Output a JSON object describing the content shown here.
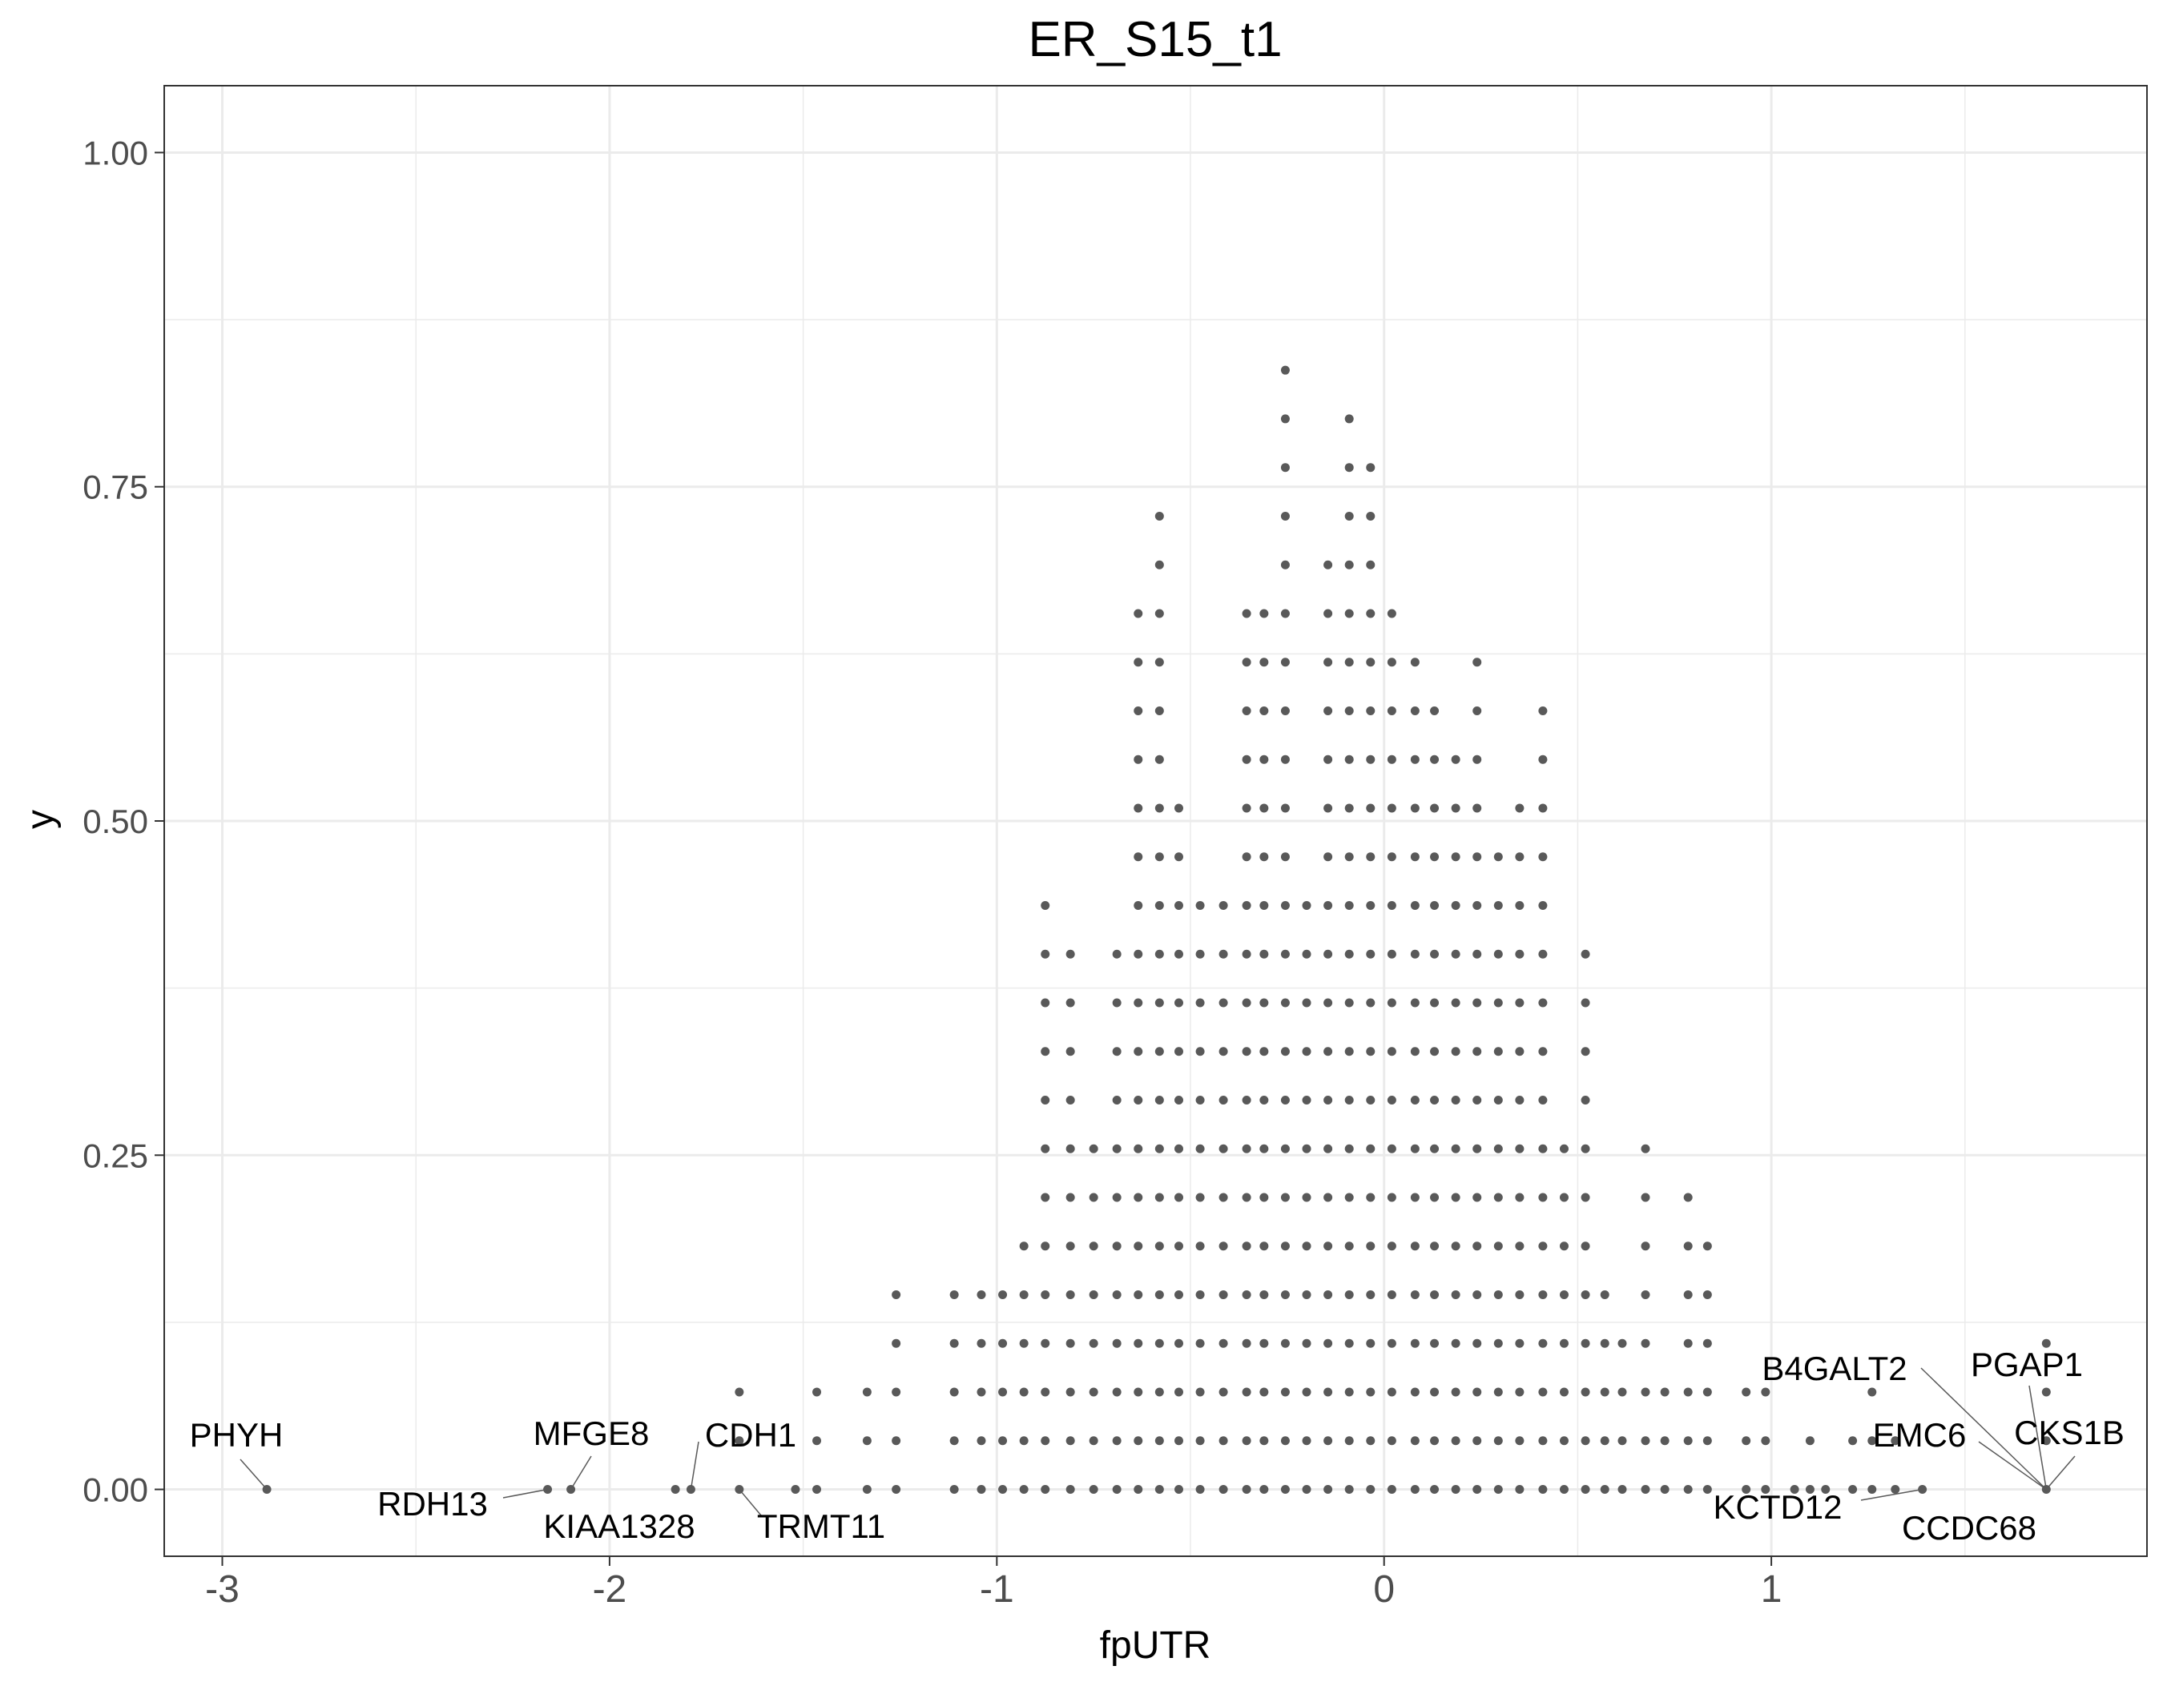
{
  "chart_data": {
    "type": "scatter",
    "title": "ER_S15_t1",
    "xlabel": "fpUTR",
    "ylabel": "y",
    "xlim": [
      -3.15,
      1.97
    ],
    "ylim": [
      -0.05,
      1.05
    ],
    "x_ticks": [
      -3,
      -2,
      -1,
      0,
      1
    ],
    "x_tick_labels": [
      "-3",
      "-2",
      "-1",
      "0",
      "1"
    ],
    "y_ticks": [
      0,
      0.25,
      0.5,
      0.75,
      1
    ],
    "y_tick_labels": [
      "0.00",
      "0.25",
      "0.50",
      "0.75",
      "1.00"
    ],
    "grid": true,
    "legend": "none",
    "colors": {
      "point": "#595959",
      "grid": "#ebebeb",
      "panel_border": "#333333",
      "text": "#000000",
      "tick_text": "#4d4d4d",
      "leader": "#595959"
    },
    "dot_columns_note": "stacked dot-plot columns; step 0.0364",
    "columns": [
      {
        "x": -2.885,
        "n": 1
      },
      {
        "x": -2.16,
        "n": 1
      },
      {
        "x": -2.1,
        "n": 1
      },
      {
        "x": -1.83,
        "n": 1
      },
      {
        "x": -1.79,
        "n": 1
      },
      {
        "x": -1.665,
        "n": 3
      },
      {
        "x": -1.52,
        "n": 1
      },
      {
        "x": -1.465,
        "n": 3
      },
      {
        "x": -1.335,
        "n": 3
      },
      {
        "x": -1.26,
        "n": 5
      },
      {
        "x": -1.11,
        "n": 5
      },
      {
        "x": -1.04,
        "n": 5
      },
      {
        "x": -0.985,
        "n": 5
      },
      {
        "x": -0.93,
        "n": 6
      },
      {
        "x": -0.875,
        "n": 13
      },
      {
        "x": -0.81,
        "n": 12
      },
      {
        "x": -0.75,
        "n": 8
      },
      {
        "x": -0.69,
        "n": 12
      },
      {
        "x": -0.635,
        "n": 19
      },
      {
        "x": -0.58,
        "n": 21
      },
      {
        "x": -0.53,
        "n": 15
      },
      {
        "x": -0.475,
        "n": 13
      },
      {
        "x": -0.415,
        "n": 13
      },
      {
        "x": -0.355,
        "n": 19
      },
      {
        "x": -0.31,
        "n": 19
      },
      {
        "x": -0.255,
        "n": 24
      },
      {
        "x": -0.2,
        "n": 13
      },
      {
        "x": -0.145,
        "n": 20
      },
      {
        "x": -0.09,
        "n": 23
      },
      {
        "x": -0.035,
        "n": 22
      },
      {
        "x": 0.02,
        "n": 19
      },
      {
        "x": 0.08,
        "n": 18
      },
      {
        "x": 0.13,
        "n": 17
      },
      {
        "x": 0.185,
        "n": 16
      },
      {
        "x": 0.24,
        "n": 18
      },
      {
        "x": 0.295,
        "n": 14
      },
      {
        "x": 0.35,
        "n": 15
      },
      {
        "x": 0.41,
        "n": 17
      },
      {
        "x": 0.465,
        "n": 8
      },
      {
        "x": 0.52,
        "n": 12
      },
      {
        "x": 0.57,
        "n": 5
      },
      {
        "x": 0.615,
        "n": 4
      },
      {
        "x": 0.675,
        "n": 8
      },
      {
        "x": 0.725,
        "n": 3
      },
      {
        "x": 0.785,
        "n": 7
      },
      {
        "x": 0.835,
        "n": 6
      },
      {
        "x": 0.935,
        "n": 3
      },
      {
        "x": 0.985,
        "n": 3
      },
      {
        "x": 1.06,
        "n": 1
      },
      {
        "x": 1.1,
        "n": 2
      },
      {
        "x": 1.14,
        "n": 1
      },
      {
        "x": 1.21,
        "n": 2
      },
      {
        "x": 1.26,
        "n": 3
      },
      {
        "x": 1.32,
        "n": 2
      },
      {
        "x": 1.39,
        "n": 1
      },
      {
        "x": 1.71,
        "n": 4
      }
    ],
    "annotations": [
      {
        "label": "PHYH",
        "x": -2.885,
        "y": 0.0
      },
      {
        "label": "RDH13",
        "x": -2.16,
        "y": 0.0
      },
      {
        "label": "MFGE8",
        "x": -2.1,
        "y": 0.0
      },
      {
        "label": "KIAA1328",
        "x": -1.79,
        "y": 0.0
      },
      {
        "label": "CDH1",
        "x": -1.79,
        "y": 0.0
      },
      {
        "label": "TRMT11",
        "x": -1.665,
        "y": 0.0
      },
      {
        "label": "B4GALT2",
        "x": 1.71,
        "y": 0.0
      },
      {
        "label": "PGAP1",
        "x": 1.71,
        "y": 0.0
      },
      {
        "label": "CKS1B",
        "x": 1.71,
        "y": 0.0
      },
      {
        "label": "EMC6",
        "x": 1.71,
        "y": 0.0
      },
      {
        "label": "KCTD12",
        "x": 1.39,
        "y": 0.0
      },
      {
        "label": "CCDC68",
        "x": 1.71,
        "y": 0.0
      }
    ]
  }
}
